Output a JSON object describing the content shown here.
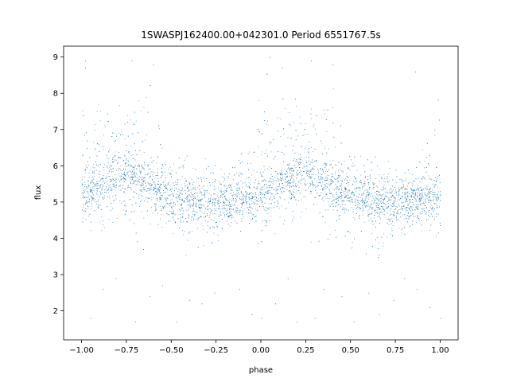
{
  "chart_data": {
    "type": "scatter",
    "title": "1SWASPJ162400.00+042301.0 Period 6551767.5s",
    "xlabel": "phase",
    "ylabel": "flux",
    "xlim": [
      -1.1,
      1.1
    ],
    "ylim": [
      1.2,
      9.3
    ],
    "xticks": [
      -1.0,
      -0.75,
      -0.5,
      -0.25,
      0.0,
      0.25,
      0.5,
      0.75,
      1.0
    ],
    "xtick_labels": [
      "−1.00",
      "−0.75",
      "−0.50",
      "−0.25",
      "0.00",
      "0.25",
      "0.50",
      "0.75",
      "1.00"
    ],
    "yticks": [
      2,
      3,
      4,
      5,
      6,
      7,
      8,
      9
    ],
    "ytick_labels": [
      "2",
      "3",
      "4",
      "5",
      "6",
      "7",
      "8",
      "9"
    ],
    "grid": false,
    "marker_color": "#1f77b4",
    "phase_range": [
      -1.0,
      1.0
    ],
    "baseline_flux": 5.05,
    "profile": {
      "phase": [
        -1.0,
        -0.95,
        -0.9,
        -0.85,
        -0.8,
        -0.75,
        -0.7,
        -0.65,
        -0.6,
        -0.55,
        -0.5,
        -0.45,
        -0.4,
        -0.35,
        -0.3,
        -0.25,
        -0.2,
        -0.15,
        -0.1,
        -0.05,
        0.0,
        0.05,
        0.1,
        0.15,
        0.2,
        0.25,
        0.3,
        0.35,
        0.4,
        0.45,
        0.5,
        0.55,
        0.6,
        0.65,
        0.7,
        0.75,
        0.8,
        0.85,
        0.9,
        0.95,
        1.0
      ],
      "flux_mean": [
        5.2,
        5.3,
        5.5,
        5.6,
        5.8,
        5.8,
        5.7,
        5.6,
        5.5,
        5.3,
        5.2,
        5.1,
        5.1,
        5.0,
        5.0,
        5.0,
        5.0,
        5.0,
        5.1,
        5.1,
        5.2,
        5.3,
        5.5,
        5.6,
        5.8,
        5.8,
        5.7,
        5.6,
        5.5,
        5.3,
        5.2,
        5.1,
        5.1,
        5.0,
        5.0,
        5.0,
        5.0,
        5.0,
        5.1,
        5.1,
        5.2
      ],
      "flux_upper": [
        8.5,
        6.5,
        8.2,
        8.3,
        7.9,
        7.8,
        8.3,
        8.5,
        8.3,
        7.0,
        6.5,
        6.5,
        6.3,
        6.3,
        6.2,
        6.0,
        6.0,
        6.0,
        6.5,
        6.8,
        8.5,
        8.8,
        8.5,
        8.2,
        7.9,
        7.8,
        8.3,
        8.5,
        8.3,
        7.0,
        6.5,
        6.5,
        6.3,
        6.3,
        6.2,
        6.0,
        6.0,
        6.0,
        6.5,
        6.8,
        8.5
      ],
      "flux_lower": [
        3.4,
        3.8,
        3.9,
        4.0,
        4.1,
        4.1,
        3.6,
        3.4,
        3.8,
        3.9,
        3.6,
        3.4,
        3.6,
        3.3,
        3.5,
        3.9,
        3.9,
        4.1,
        4.0,
        4.0,
        3.4,
        3.8,
        3.9,
        4.0,
        4.1,
        4.1,
        3.6,
        3.4,
        3.8,
        3.9,
        3.6,
        3.4,
        3.6,
        3.3,
        3.5,
        3.9,
        3.9,
        4.1,
        4.0,
        4.0,
        3.4
      ]
    },
    "outliers": [
      [
        -0.95,
        1.8
      ],
      [
        -0.88,
        2.6
      ],
      [
        -0.81,
        2.9
      ],
      [
        -0.7,
        1.7
      ],
      [
        -0.62,
        2.4
      ],
      [
        -0.55,
        2.7
      ],
      [
        -0.47,
        1.7
      ],
      [
        -0.4,
        2.3
      ],
      [
        -0.33,
        2.2
      ],
      [
        -0.26,
        2.5
      ],
      [
        -0.12,
        2.6
      ],
      [
        -0.05,
        1.9
      ],
      [
        0.0,
        1.8
      ],
      [
        0.08,
        2.2
      ],
      [
        0.15,
        2.9
      ],
      [
        0.2,
        1.7
      ],
      [
        0.3,
        1.8
      ],
      [
        0.35,
        2.6
      ],
      [
        0.45,
        2.4
      ],
      [
        0.52,
        1.7
      ],
      [
        0.6,
        2.5
      ],
      [
        0.66,
        1.9
      ],
      [
        0.74,
        2.3
      ],
      [
        0.8,
        2.9
      ],
      [
        0.87,
        2.6
      ],
      [
        0.94,
        2.1
      ],
      [
        1.0,
        1.8
      ],
      [
        -0.98,
        8.7
      ],
      [
        -0.72,
        8.9
      ],
      [
        -0.6,
        8.8
      ],
      [
        0.05,
        9.0
      ],
      [
        0.12,
        8.7
      ],
      [
        0.28,
        8.9
      ],
      [
        0.4,
        8.8
      ],
      [
        0.86,
        8.6
      ],
      [
        -0.98,
        8.9
      ]
    ]
  }
}
